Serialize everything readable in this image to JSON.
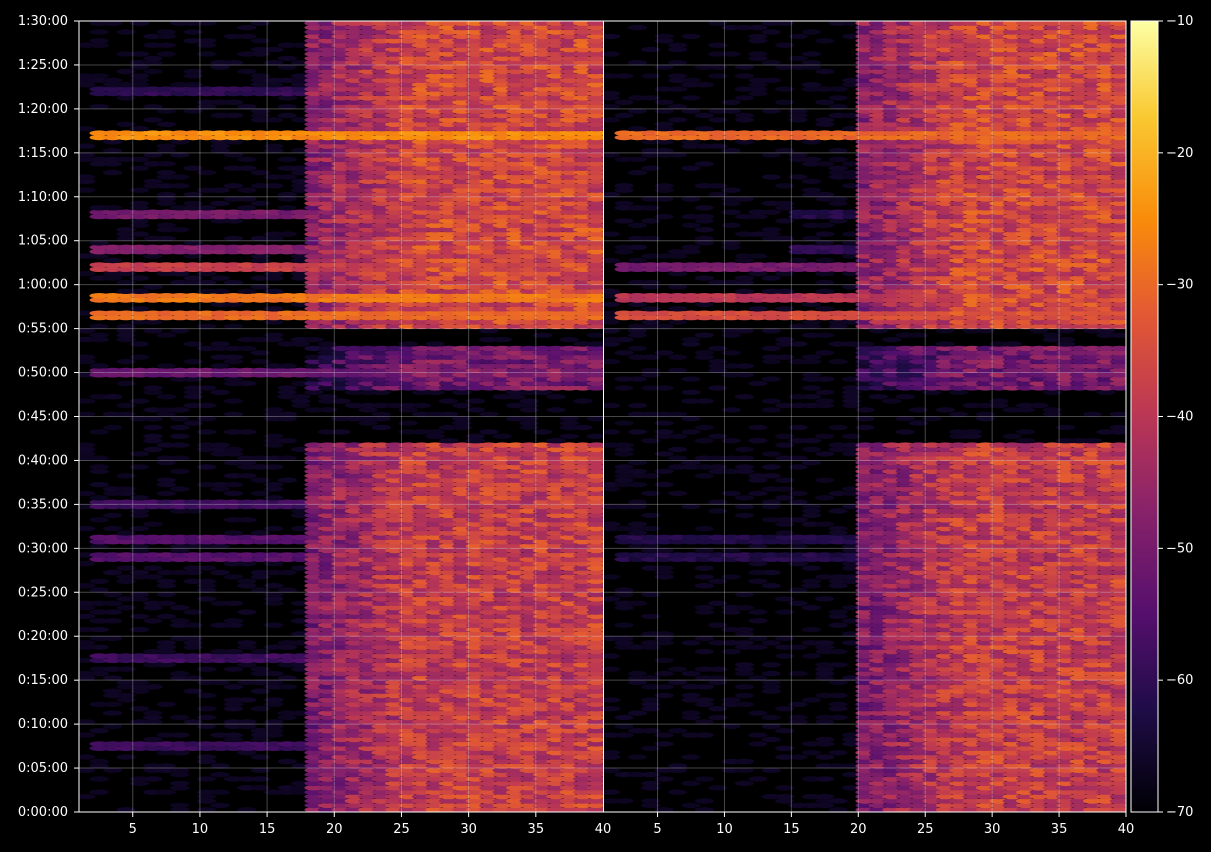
{
  "chart_data": {
    "type": "heatmap",
    "title": "",
    "colormap": "inferno",
    "facets": [
      {
        "name": "",
        "x_range": [
          1,
          40
        ]
      },
      {
        "name": "",
        "x_range": [
          1,
          40
        ]
      }
    ],
    "x_ticks": [
      "5",
      "10",
      "15",
      "20",
      "25",
      "30",
      "35",
      "40"
    ],
    "x_ticks_first_panel": [
      "5",
      "10",
      "15",
      "20",
      "25",
      "30",
      "35"
    ],
    "y_range_seconds": [
      0,
      5400
    ],
    "y_ticks": [
      "0:00:00",
      "0:05:00",
      "0:10:00",
      "0:15:00",
      "0:20:00",
      "0:25:00",
      "0:30:00",
      "0:35:00",
      "0:40:00",
      "0:45:00",
      "0:50:00",
      "0:55:00",
      "1:00:00",
      "1:05:00",
      "1:10:00",
      "1:15:00",
      "1:20:00",
      "1:25:00",
      "1:30:00"
    ],
    "colorbar": {
      "range": [
        -70,
        -10
      ],
      "ticks": [
        "−70",
        "−60",
        "−50",
        "−40",
        "−30",
        "−20",
        "−10"
      ]
    },
    "grid": true,
    "bands": [
      {
        "label": "1:17:00",
        "t": 4620,
        "left": -25,
        "right": -30,
        "onset_right": 2
      },
      {
        "label": "0:58:30",
        "t": 3510,
        "left": -28,
        "right": -40,
        "onset_right": 2
      },
      {
        "label": "0:56:30",
        "t": 3390,
        "left": -30,
        "right": -35,
        "onset_right": 2
      },
      {
        "label": "1:02:00",
        "t": 3720,
        "left": -38,
        "right": -50,
        "onset_right": 2
      },
      {
        "label": "1:04:00",
        "t": 3840,
        "left": -48,
        "right": -60,
        "onset_right": 15
      },
      {
        "label": "1:08:00",
        "t": 4080,
        "left": -50,
        "right": -62,
        "onset_right": 15
      },
      {
        "label": "0:50:00",
        "t": 3000,
        "left": -52,
        "right": -62,
        "onset_right": 20
      },
      {
        "label": "0:35:00",
        "t": 2100,
        "left": -58,
        "right": -66,
        "onset_right": 20
      },
      {
        "label": "0:31:00",
        "t": 1860,
        "left": -55,
        "right": -62,
        "onset_right": 2
      },
      {
        "label": "0:29:00",
        "t": 1740,
        "left": -55,
        "right": -62,
        "onset_right": 2
      },
      {
        "label": "0:17:30",
        "t": 1050,
        "left": -58,
        "right": -66,
        "onset_right": 22
      },
      {
        "label": "0:07:30",
        "t": 450,
        "left": -58,
        "right": -66,
        "onset_right": 22
      },
      {
        "label": "1:22:00",
        "t": 4920,
        "left": -60,
        "right": -60,
        "onset_right": 20
      }
    ],
    "activity_windows": [
      {
        "from": 0,
        "to": 2520,
        "level": -40
      },
      {
        "from": 2880,
        "to": 3180,
        "level": -52
      },
      {
        "from": 3300,
        "to": 5400,
        "level": -38
      }
    ],
    "background_level": -70
  }
}
